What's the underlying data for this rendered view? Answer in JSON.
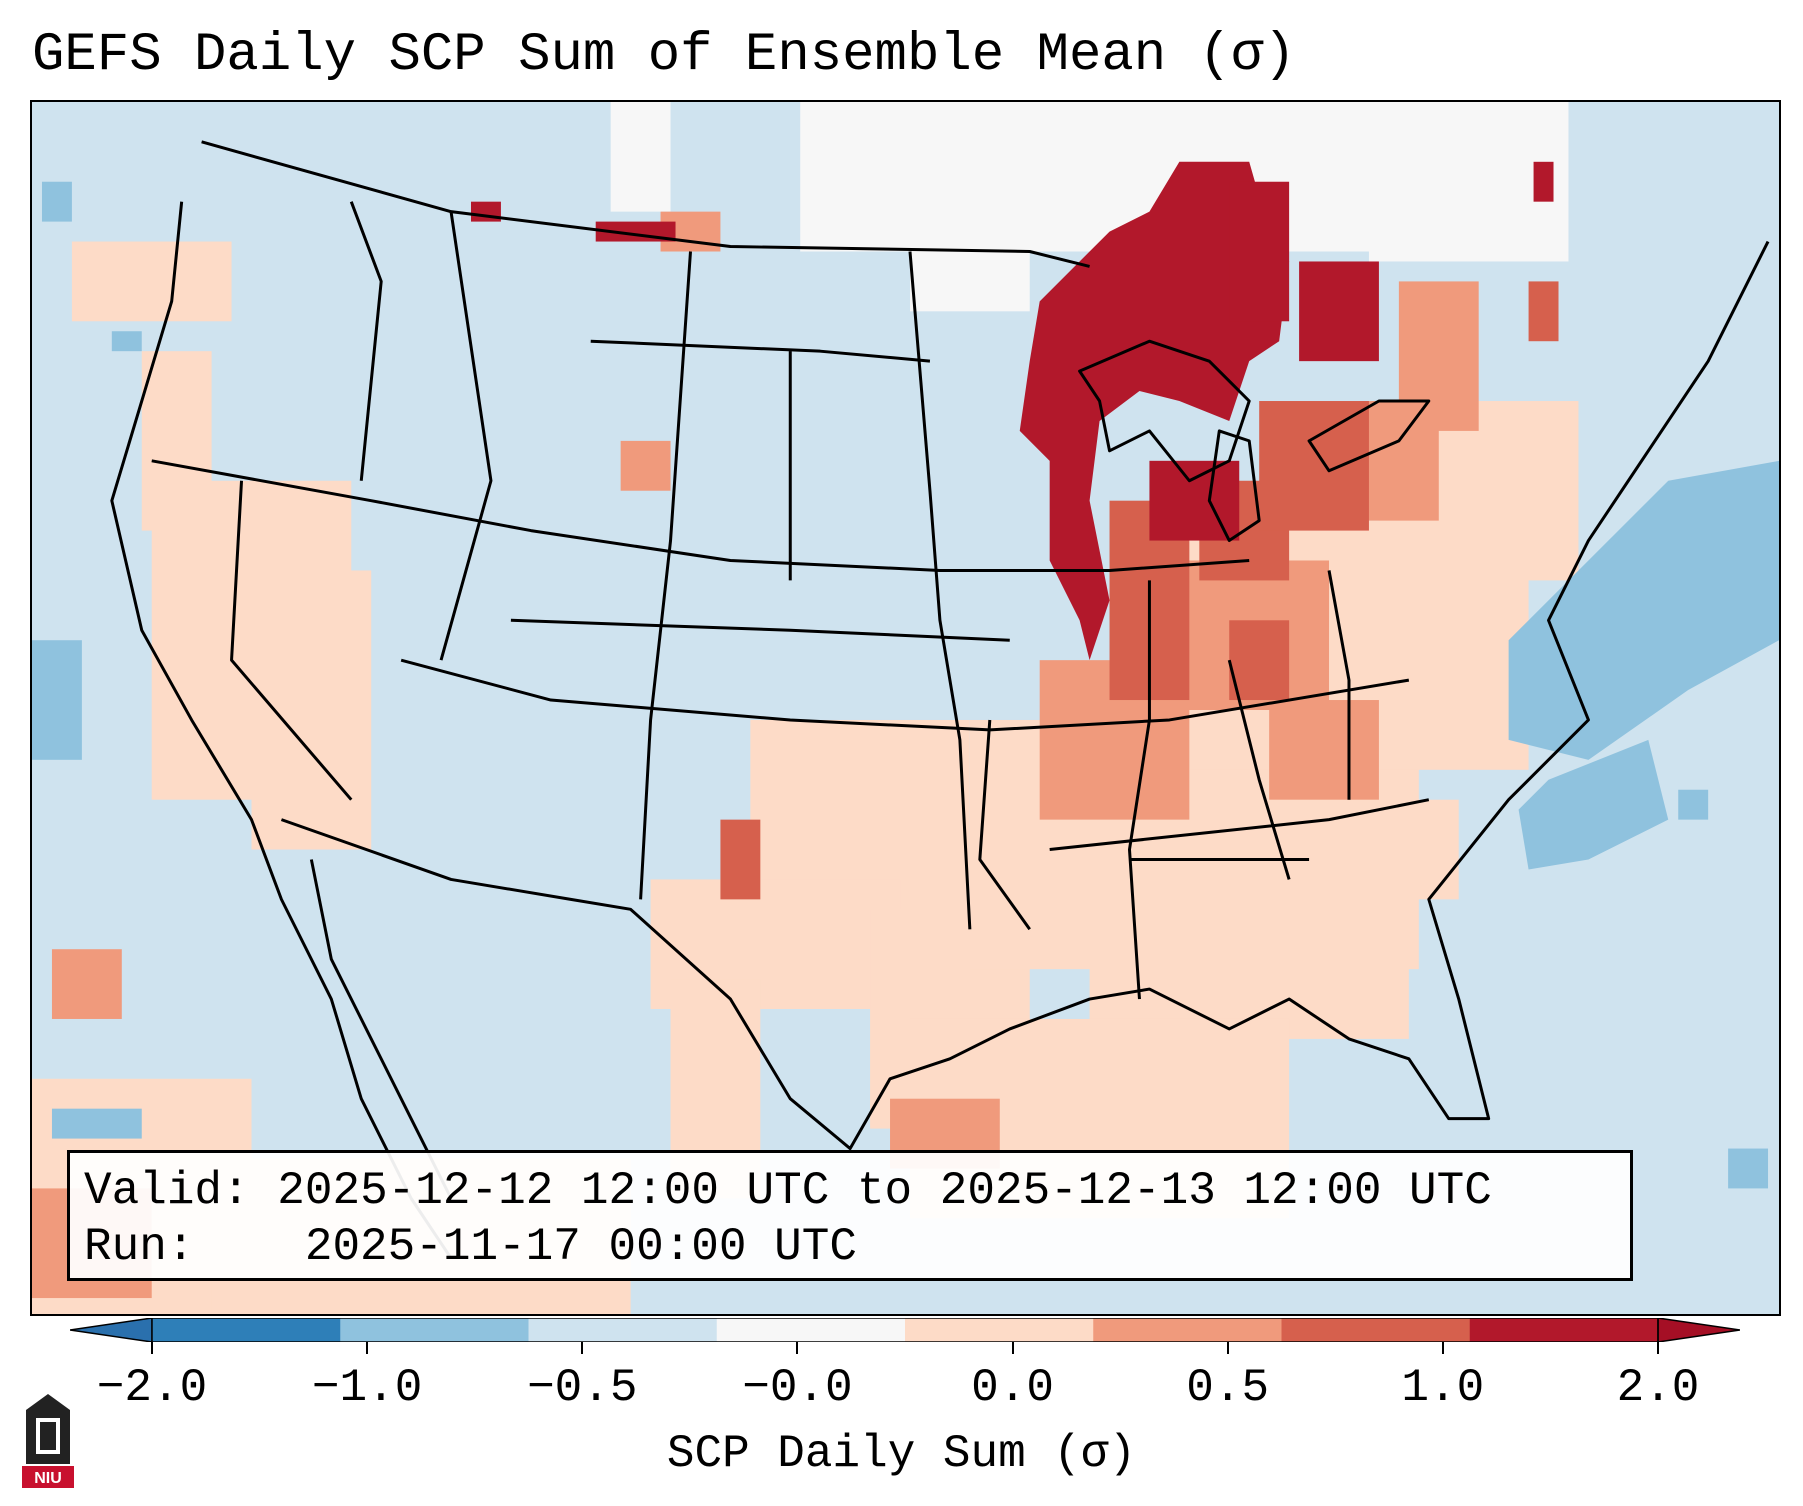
{
  "title": "GEFS Daily SCP Sum of Ensemble Mean (σ)",
  "info": {
    "valid_label": "Valid:",
    "valid_value": "2025-12-12 12:00 UTC to 2025-12-13 12:00 UTC",
    "run_label": "Run:",
    "run_value": "2025-11-17 00:00 UTC"
  },
  "colorbar": {
    "label": "SCP Daily Sum (σ)",
    "ticks": [
      "−2.0",
      "−1.0",
      "−0.5",
      "−0.0",
      "0.0",
      "0.5",
      "1.0",
      "2.0"
    ],
    "colors": [
      "#2e7fb8",
      "#8fc2de",
      "#cfe3ef",
      "#f7f7f7",
      "#fddbc7",
      "#f09a7c",
      "#d6604d",
      "#b2182b"
    ],
    "extend_colors": {
      "low": "#2a70ad",
      "high": "#a50f25"
    }
  },
  "map": {
    "domain": "Continental United States",
    "background_color": "#cfe3ef",
    "land_edge_color": "#000000"
  },
  "logo": {
    "text": "NIU",
    "color": "#c8102e"
  }
}
